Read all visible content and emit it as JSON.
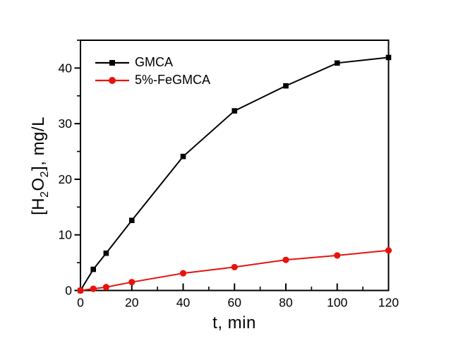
{
  "chart_data": {
    "type": "line",
    "title": "",
    "xlabel": "t, min",
    "ylabel": "[H2O2], mg/L",
    "ylabel_parts": [
      {
        "text": "[H"
      },
      {
        "text": "2",
        "sub": true
      },
      {
        "text": "O"
      },
      {
        "text": "2",
        "sub": true
      },
      {
        "text": "], mg/L"
      }
    ],
    "x": [
      0,
      5,
      10,
      20,
      40,
      60,
      80,
      100,
      120
    ],
    "series": [
      {
        "name": "GMCA",
        "color": "#000000",
        "marker": "square",
        "values": [
          0,
          3.8,
          6.7,
          12.6,
          24.1,
          32.3,
          36.8,
          40.9,
          41.9
        ]
      },
      {
        "name": "5%-FeGMCA",
        "color": "#e8120d",
        "marker": "circle",
        "values": [
          0,
          0.3,
          0.6,
          1.5,
          3.1,
          4.2,
          5.5,
          6.3,
          7.2
        ]
      }
    ],
    "xlim": [
      0,
      120
    ],
    "ylim": [
      0,
      45
    ],
    "x_major_ticks": [
      0,
      20,
      40,
      60,
      80,
      100,
      120
    ],
    "x_minor_ticks": [
      10,
      30,
      50,
      70,
      90,
      110
    ],
    "y_major_ticks": [
      0,
      10,
      20,
      30,
      40
    ],
    "y_minor_ticks": [
      5,
      15,
      25,
      35,
      45
    ],
    "legend_position": "top-left",
    "grid": false,
    "frame_color": "#000000",
    "background_color": "#ffffff",
    "tick_label_color": "#000000"
  }
}
